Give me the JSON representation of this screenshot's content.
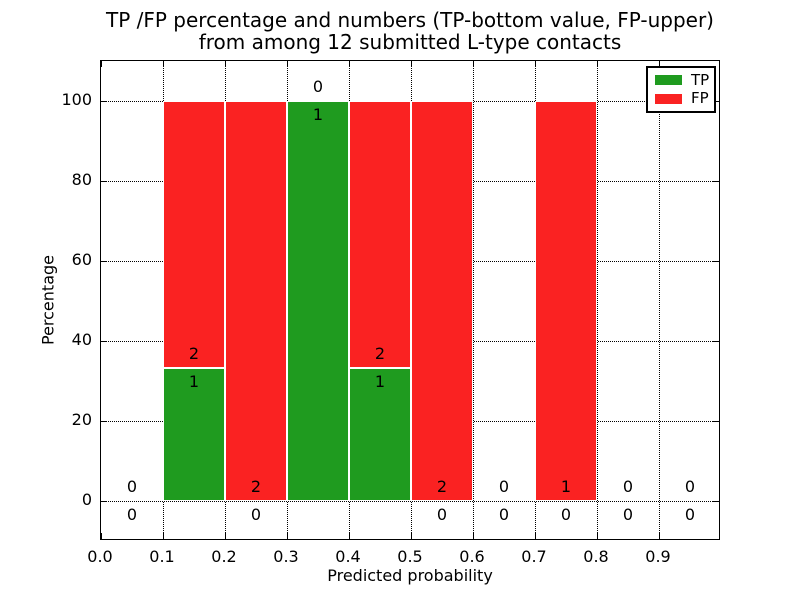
{
  "title": {
    "line1": "TP /FP percentage and numbers (TP-bottom value, FP-upper)",
    "line2": "from among 12 submitted L-type contacts"
  },
  "legend": {
    "items": [
      {
        "label": "TP",
        "color": "#1f9b1f"
      },
      {
        "label": "FP",
        "color": "#fa2222"
      }
    ]
  },
  "chart_data": {
    "type": "bar",
    "stacked": true,
    "title": "TP /FP percentage and numbers (TP-bottom value, FP-upper) from among 12 submitted L-type contacts",
    "xlabel": "Predicted probability",
    "ylabel": "Percentage",
    "xlim": [
      0.0,
      1.0
    ],
    "ylim": [
      -10,
      110
    ],
    "grid": "dotted",
    "legend_position": "upper right",
    "bin_width": 0.1,
    "bin_starts": [
      0.0,
      0.1,
      0.2,
      0.3,
      0.4,
      0.5,
      0.6,
      0.7,
      0.8,
      0.9
    ],
    "x_tick_labels": [
      "0.0",
      "0.1",
      "0.2",
      "0.3",
      "0.4",
      "0.5",
      "0.6",
      "0.7",
      "0.8",
      "0.9"
    ],
    "y_ticks": [
      0,
      20,
      40,
      60,
      80,
      100
    ],
    "series": [
      {
        "name": "TP",
        "color": "#1f9b1f",
        "pct_values": [
          0,
          33.33,
          0,
          100,
          33.33,
          0,
          0,
          0,
          0,
          0
        ],
        "counts": [
          0,
          1,
          0,
          1,
          1,
          0,
          0,
          0,
          0,
          0
        ]
      },
      {
        "name": "FP",
        "color": "#fa2222",
        "pct_values": [
          0,
          66.67,
          100,
          0,
          66.67,
          100,
          0,
          100,
          0,
          0
        ],
        "counts": [
          0,
          2,
          2,
          0,
          2,
          2,
          0,
          1,
          0,
          0
        ]
      }
    ],
    "total_contacts": 12
  }
}
